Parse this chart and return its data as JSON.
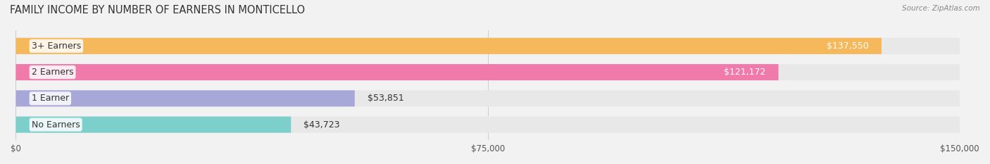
{
  "title": "FAMILY INCOME BY NUMBER OF EARNERS IN MONTICELLO",
  "source": "Source: ZipAtlas.com",
  "categories": [
    "No Earners",
    "1 Earner",
    "2 Earners",
    "3+ Earners"
  ],
  "values": [
    43723,
    53851,
    121172,
    137550
  ],
  "bar_colors": [
    "#7dcfcc",
    "#a8a8d8",
    "#f07aaa",
    "#f5b85a"
  ],
  "label_colors": [
    "#333333",
    "#333333",
    "#ffffff",
    "#ffffff"
  ],
  "xlim": [
    0,
    150000
  ],
  "xticks": [
    0,
    75000,
    150000
  ],
  "xtick_labels": [
    "$0",
    "$75,000",
    "$150,000"
  ],
  "bg_color": "#f2f2f2",
  "bar_bg_color": "#e8e8e8",
  "label_fontsize": 9,
  "value_fontsize": 9,
  "title_fontsize": 10.5
}
